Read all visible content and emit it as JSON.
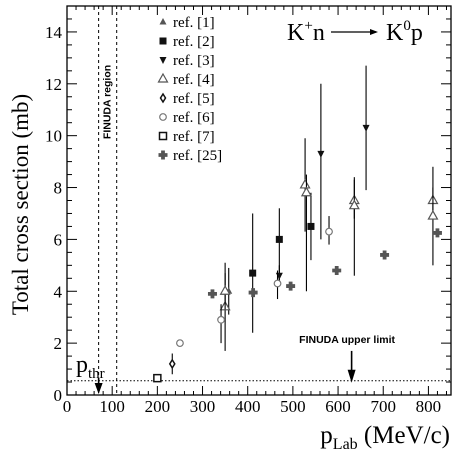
{
  "chart_data": {
    "type": "scatter",
    "reaction": {
      "lhs_base": "K",
      "lhs_sup": "+",
      "lhs_rest": "n",
      "arrow": "⟶",
      "rhs_base": "K",
      "rhs_sup": "0",
      "rhs_rest": "p"
    },
    "ylabel": "Total cross section (mb)",
    "xlabel": {
      "base": "p",
      "sub": "Lab",
      "rest": " (MeV/c)"
    },
    "xlim": [
      0,
      850
    ],
    "ylim": [
      0,
      15
    ],
    "x_ticks": [
      0,
      100,
      200,
      300,
      400,
      500,
      600,
      700,
      800
    ],
    "x_tick_labels": [
      "0",
      "100",
      "200",
      "300",
      "400",
      "500",
      "600",
      "700",
      "800"
    ],
    "y_ticks": [
      0,
      2,
      4,
      6,
      8,
      10,
      12,
      14
    ],
    "y_tick_labels": [
      "0",
      "2",
      "4",
      "6",
      "8",
      "10",
      "12",
      "14"
    ],
    "grid": false,
    "legend_position": "top-left",
    "series": [
      {
        "name": "ref. [1]",
        "marker": "triangle-up-filled-small",
        "color": "#555555",
        "points": [
          {
            "x": 358,
            "y": 4.0,
            "lo": 3.1,
            "hi": 4.9
          }
        ]
      },
      {
        "name": "ref. [2]",
        "marker": "square-filled",
        "color": "#111111",
        "points": [
          {
            "x": 411,
            "y": 4.7,
            "lo": 2.4,
            "hi": 7.0
          },
          {
            "x": 470,
            "y": 6.0,
            "lo": 4.3,
            "hi": 7.2
          },
          {
            "x": 540,
            "y": 6.5,
            "lo": 5.2,
            "hi": 7.8
          }
        ]
      },
      {
        "name": "ref. [3]",
        "marker": "triangle-down-filled",
        "color": "#111111",
        "points": [
          {
            "x": 470,
            "y": 4.6,
            "lo": 4.3,
            "hi": 5.0
          },
          {
            "x": 562,
            "y": 9.3,
            "lo": 6.0,
            "hi": 12.0
          },
          {
            "x": 662,
            "y": 10.3,
            "lo": 7.9,
            "hi": 12.7
          }
        ]
      },
      {
        "name": "ref. [4]",
        "marker": "triangle-up-open",
        "color": "#555555",
        "points": [
          {
            "x": 350,
            "y": 3.4,
            "lo": 1.7,
            "hi": 5.1
          },
          {
            "x": 350,
            "y": 4.0,
            "lo": 3.3,
            "hi": 4.7
          },
          {
            "x": 527,
            "y": 8.1,
            "lo": 6.3,
            "hi": 9.9
          },
          {
            "x": 530,
            "y": 7.8,
            "lo": 4.0,
            "hi": 8.5
          },
          {
            "x": 636,
            "y": 7.5,
            "lo": 6.8,
            "hi": 8.3
          },
          {
            "x": 636,
            "y": 7.3,
            "lo": 4.6,
            "hi": 8.4
          },
          {
            "x": 810,
            "y": 7.5,
            "lo": 6.9,
            "hi": 8.8
          },
          {
            "x": 810,
            "y": 6.9,
            "lo": 5.0,
            "hi": 8.0
          }
        ]
      },
      {
        "name": "ref. [5]",
        "marker": "diamond-thin",
        "color": "#111111",
        "points": [
          {
            "x": 233,
            "y": 1.2,
            "lo": 0.8,
            "hi": 1.6
          }
        ]
      },
      {
        "name": "ref. [6]",
        "marker": "circle-open",
        "color": "#777777",
        "points": [
          {
            "x": 250,
            "y": 2.0,
            "lo": 2.0,
            "hi": 2.0
          },
          {
            "x": 341,
            "y": 2.9,
            "lo": 2.0,
            "hi": 3.5
          },
          {
            "x": 466,
            "y": 4.3,
            "lo": 3.7,
            "hi": 4.8
          },
          {
            "x": 580,
            "y": 6.3,
            "lo": 5.8,
            "hi": 6.9
          }
        ]
      },
      {
        "name": "ref. [7]",
        "marker": "square-open",
        "color": "#111111",
        "points": [
          {
            "x": 200,
            "y": 0.65,
            "lo": 0.65,
            "hi": 0.65
          }
        ]
      },
      {
        "name": "ref. [25]",
        "marker": "cross-filled",
        "color": "#555555",
        "points": [
          {
            "x": 322,
            "y": 3.9,
            "lo": 3.9,
            "hi": 3.9
          },
          {
            "x": 412,
            "y": 3.95,
            "lo": 3.95,
            "hi": 3.95
          },
          {
            "x": 495,
            "y": 4.2,
            "lo": 4.2,
            "hi": 4.2
          },
          {
            "x": 597,
            "y": 4.8,
            "lo": 4.8,
            "hi": 4.8
          },
          {
            "x": 703,
            "y": 5.4,
            "lo": 5.4,
            "hi": 5.4
          },
          {
            "x": 820,
            "y": 6.25,
            "lo": 6.25,
            "hi": 6.25
          }
        ]
      }
    ],
    "annotations": {
      "finuda_region_label": "FINUDA region",
      "finuda_region_x": [
        70,
        110
      ],
      "upper_limit_label": "FINUDA upper limit",
      "upper_limit_y": 0.55,
      "upper_limit_arrow_x": 630,
      "threshold_label_base": "p",
      "threshold_label_sub": "thr",
      "threshold_x": 70
    }
  }
}
